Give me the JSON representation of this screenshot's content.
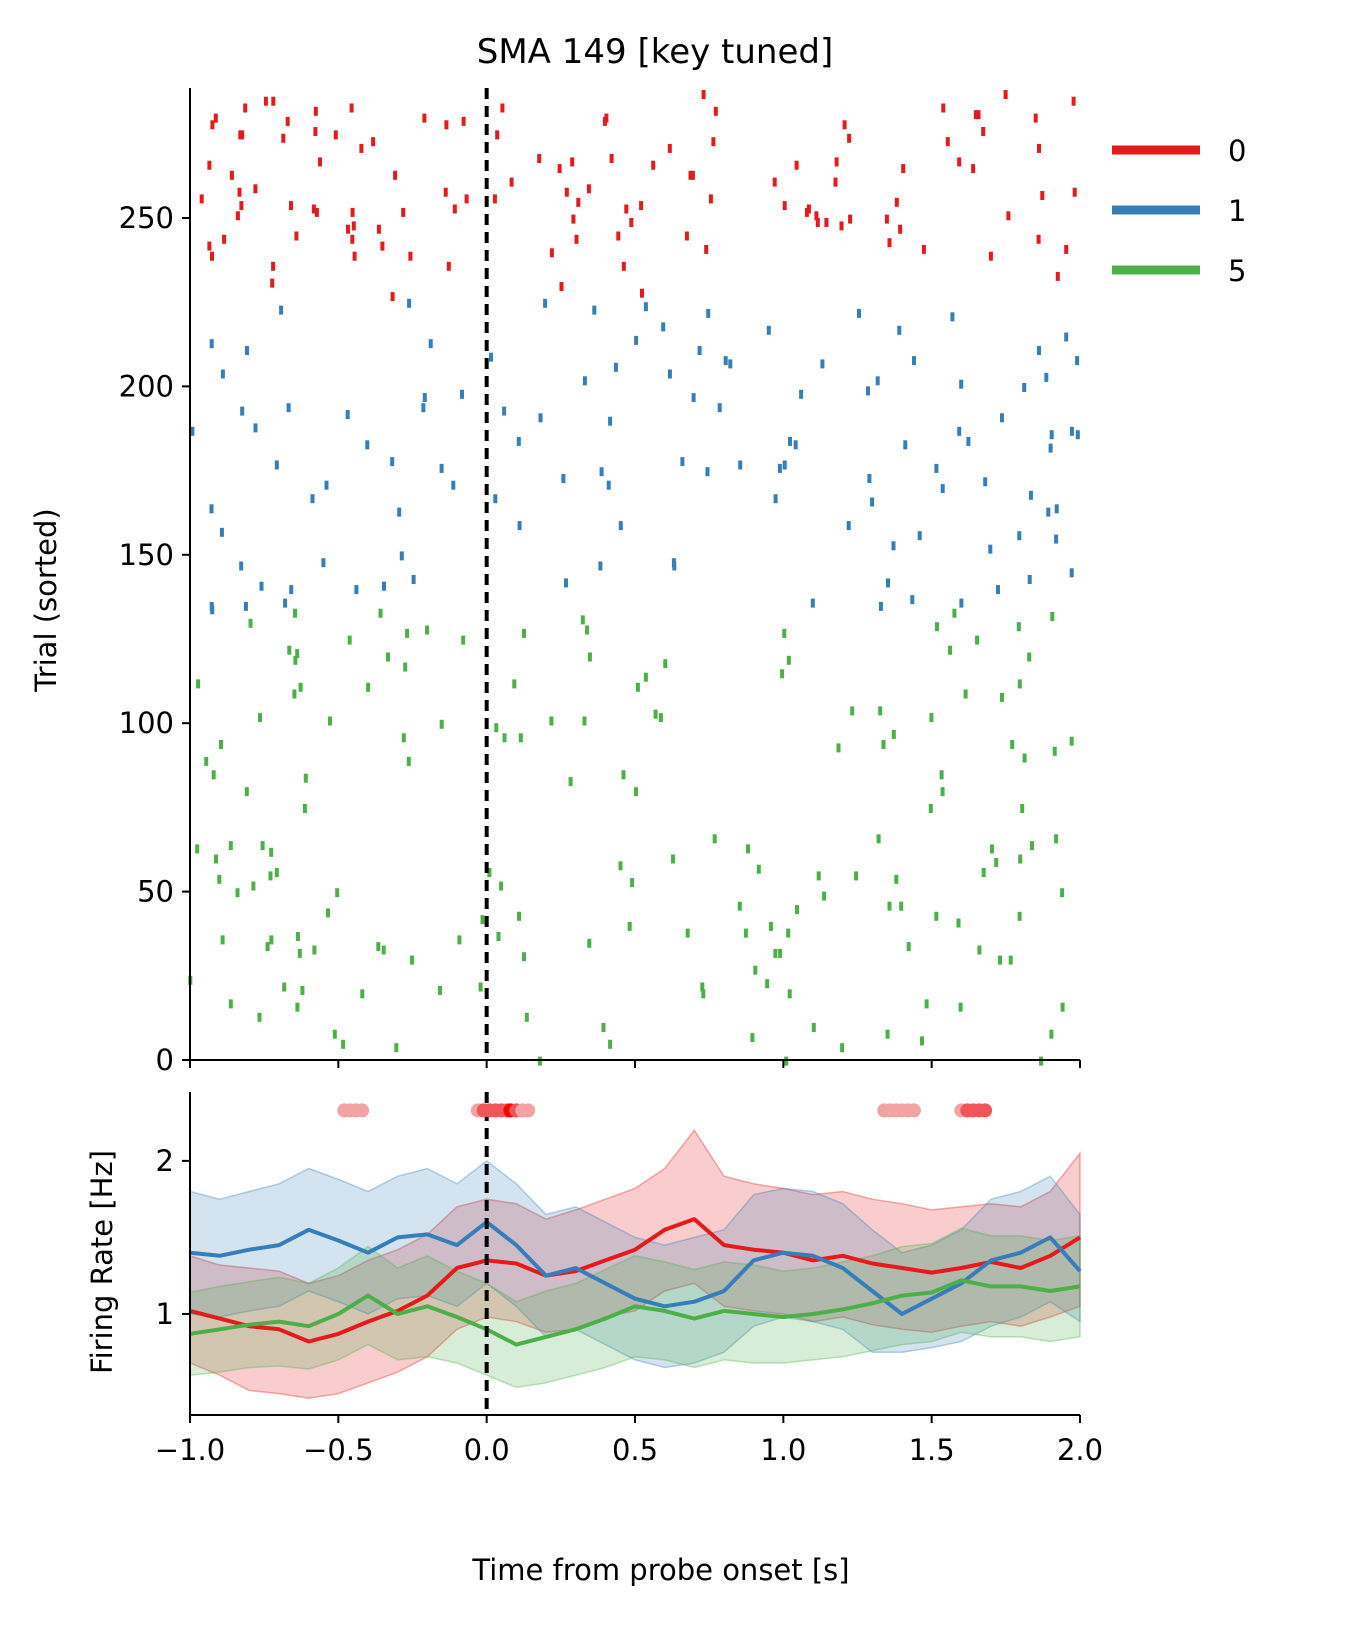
{
  "chart_data": [
    {
      "type": "scatter",
      "subtype": "spike-raster",
      "title": "SMA 149 [key tuned]",
      "xlabel": "",
      "ylabel": "Trial (sorted)",
      "xlim": [
        -1.0,
        2.0
      ],
      "ylim": [
        0,
        288
      ],
      "yticks": [
        0,
        50,
        100,
        150,
        200,
        250
      ],
      "ytick_labels": [
        "0",
        "50",
        "100",
        "150",
        "200",
        "250"
      ],
      "event_line_x": 0.0,
      "legend": {
        "placement": "right-outside-top",
        "entries": [
          "0",
          "1",
          "5"
        ]
      },
      "series": [
        {
          "name": "0",
          "color": "#e41a1c",
          "trial_range": [
            227,
            288
          ]
        },
        {
          "name": "1",
          "color": "#377eb8",
          "trial_range": [
            134,
            227
          ]
        },
        {
          "name": "5",
          "color": "#4daf4a",
          "trial_range": [
            0,
            134
          ]
        }
      ]
    },
    {
      "type": "line",
      "xlabel": "Time from probe onset [s]",
      "ylabel": "Firing Rate [Hz]",
      "xlim": [
        -1.0,
        2.0
      ],
      "ylim": [
        0.34,
        2.45
      ],
      "xticks": [
        -1.0,
        -0.5,
        0.0,
        0.5,
        1.0,
        1.5,
        2.0
      ],
      "xtick_labels": [
        "−1.0",
        "−0.5",
        "0.0",
        "0.5",
        "1.0",
        "1.5",
        "2.0"
      ],
      "yticks": [
        1,
        2
      ],
      "ytick_labels": [
        "1",
        "2"
      ],
      "event_line_x": 0.0,
      "band_alpha": 0.22,
      "significance_marker_y": 2.33,
      "significance_markers": [
        {
          "x": -0.48,
          "level": "weak"
        },
        {
          "x": -0.46,
          "level": "weak"
        },
        {
          "x": -0.44,
          "level": "weak"
        },
        {
          "x": -0.42,
          "level": "weak"
        },
        {
          "x": -0.03,
          "level": "weak"
        },
        {
          "x": -0.01,
          "level": "mid"
        },
        {
          "x": 0.01,
          "level": "mid"
        },
        {
          "x": 0.03,
          "level": "mid"
        },
        {
          "x": 0.05,
          "level": "mid"
        },
        {
          "x": 0.07,
          "level": "mid"
        },
        {
          "x": 0.08,
          "level": "strong"
        },
        {
          "x": 0.1,
          "level": "mid"
        },
        {
          "x": 0.12,
          "level": "weak"
        },
        {
          "x": 0.14,
          "level": "weak"
        },
        {
          "x": 1.34,
          "level": "weak"
        },
        {
          "x": 1.36,
          "level": "weak"
        },
        {
          "x": 1.38,
          "level": "weak"
        },
        {
          "x": 1.4,
          "level": "weak"
        },
        {
          "x": 1.42,
          "level": "weak"
        },
        {
          "x": 1.44,
          "level": "weak"
        },
        {
          "x": 1.6,
          "level": "weak"
        },
        {
          "x": 1.62,
          "level": "mid"
        },
        {
          "x": 1.64,
          "level": "mid"
        },
        {
          "x": 1.66,
          "level": "mid"
        },
        {
          "x": 1.68,
          "level": "mid"
        }
      ],
      "marker_colors": {
        "weak": "#f4a3a4",
        "mid": "#f05558",
        "strong": "#ff0000"
      },
      "series": [
        {
          "name": "0",
          "color": "#e41a1c",
          "x": [
            -1.0,
            -0.9,
            -0.8,
            -0.7,
            -0.6,
            -0.5,
            -0.4,
            -0.3,
            -0.2,
            -0.1,
            0.0,
            0.1,
            0.2,
            0.3,
            0.4,
            0.5,
            0.6,
            0.7,
            0.8,
            0.9,
            1.0,
            1.1,
            1.2,
            1.3,
            1.4,
            1.5,
            1.6,
            1.7,
            1.8,
            1.9,
            2.0
          ],
          "y": [
            1.02,
            0.97,
            0.92,
            0.9,
            0.82,
            0.87,
            0.95,
            1.02,
            1.12,
            1.3,
            1.35,
            1.33,
            1.25,
            1.28,
            1.35,
            1.42,
            1.55,
            1.62,
            1.45,
            1.42,
            1.4,
            1.35,
            1.38,
            1.33,
            1.3,
            1.27,
            1.3,
            1.34,
            1.3,
            1.38,
            1.5
          ],
          "lower": [
            0.68,
            0.6,
            0.5,
            0.48,
            0.45,
            0.48,
            0.55,
            0.62,
            0.72,
            0.9,
            0.98,
            0.95,
            0.88,
            0.9,
            0.98,
            1.02,
            1.15,
            1.2,
            1.05,
            1.02,
            1.0,
            0.95,
            0.98,
            0.93,
            0.9,
            0.88,
            0.92,
            0.95,
            0.92,
            0.98,
            1.05
          ],
          "upper": [
            1.38,
            1.32,
            1.3,
            1.28,
            1.2,
            1.25,
            1.35,
            1.42,
            1.52,
            1.7,
            1.75,
            1.72,
            1.62,
            1.68,
            1.75,
            1.82,
            1.95,
            2.2,
            1.9,
            1.85,
            1.82,
            1.78,
            1.8,
            1.75,
            1.72,
            1.68,
            1.7,
            1.72,
            1.7,
            1.8,
            2.05
          ]
        },
        {
          "name": "1",
          "color": "#377eb8",
          "x": [
            -1.0,
            -0.9,
            -0.8,
            -0.7,
            -0.6,
            -0.5,
            -0.4,
            -0.3,
            -0.2,
            -0.1,
            0.0,
            0.1,
            0.2,
            0.3,
            0.4,
            0.5,
            0.6,
            0.7,
            0.8,
            0.9,
            1.0,
            1.1,
            1.2,
            1.3,
            1.4,
            1.5,
            1.6,
            1.7,
            1.8,
            1.9,
            2.0
          ],
          "y": [
            1.4,
            1.38,
            1.42,
            1.45,
            1.55,
            1.48,
            1.4,
            1.5,
            1.52,
            1.45,
            1.6,
            1.45,
            1.25,
            1.3,
            1.2,
            1.1,
            1.05,
            1.08,
            1.15,
            1.35,
            1.4,
            1.38,
            1.3,
            1.15,
            1.0,
            1.1,
            1.2,
            1.35,
            1.4,
            1.5,
            1.28
          ],
          "lower": [
            1.0,
            0.98,
            1.02,
            1.05,
            1.15,
            1.08,
            1.0,
            1.1,
            1.12,
            1.05,
            1.2,
            1.05,
            0.85,
            0.9,
            0.8,
            0.7,
            0.65,
            0.68,
            0.75,
            0.92,
            0.98,
            0.95,
            0.9,
            0.75,
            0.75,
            0.78,
            0.82,
            0.92,
            0.98,
            1.08,
            0.95
          ],
          "upper": [
            1.8,
            1.75,
            1.8,
            1.85,
            1.95,
            1.88,
            1.8,
            1.9,
            1.95,
            1.85,
            2.0,
            1.85,
            1.65,
            1.7,
            1.6,
            1.5,
            1.45,
            1.5,
            1.55,
            1.78,
            1.82,
            1.8,
            1.72,
            1.55,
            1.4,
            1.45,
            1.55,
            1.75,
            1.8,
            1.9,
            1.65
          ]
        },
        {
          "name": "5",
          "color": "#4daf4a",
          "x": [
            -1.0,
            -0.9,
            -0.8,
            -0.7,
            -0.6,
            -0.5,
            -0.4,
            -0.3,
            -0.2,
            -0.1,
            0.0,
            0.1,
            0.2,
            0.3,
            0.4,
            0.5,
            0.6,
            0.7,
            0.8,
            0.9,
            1.0,
            1.1,
            1.2,
            1.3,
            1.4,
            1.5,
            1.6,
            1.7,
            1.8,
            1.9,
            2.0
          ],
          "y": [
            0.87,
            0.9,
            0.93,
            0.95,
            0.92,
            1.0,
            1.12,
            1.0,
            1.05,
            0.98,
            0.9,
            0.8,
            0.85,
            0.9,
            0.97,
            1.05,
            1.02,
            0.97,
            1.02,
            1.0,
            0.98,
            1.0,
            1.03,
            1.07,
            1.12,
            1.14,
            1.22,
            1.18,
            1.18,
            1.15,
            1.18
          ],
          "lower": [
            0.6,
            0.62,
            0.65,
            0.66,
            0.64,
            0.7,
            0.8,
            0.7,
            0.72,
            0.68,
            0.6,
            0.52,
            0.55,
            0.6,
            0.65,
            0.72,
            0.7,
            0.65,
            0.7,
            0.68,
            0.68,
            0.7,
            0.72,
            0.76,
            0.8,
            0.82,
            0.88,
            0.85,
            0.85,
            0.82,
            0.85
          ],
          "upper": [
            1.14,
            1.18,
            1.21,
            1.24,
            1.2,
            1.3,
            1.44,
            1.3,
            1.38,
            1.28,
            1.2,
            1.08,
            1.15,
            1.2,
            1.29,
            1.38,
            1.34,
            1.29,
            1.34,
            1.32,
            1.28,
            1.3,
            1.34,
            1.38,
            1.44,
            1.46,
            1.56,
            1.51,
            1.51,
            1.48,
            1.51
          ]
        }
      ]
    }
  ]
}
